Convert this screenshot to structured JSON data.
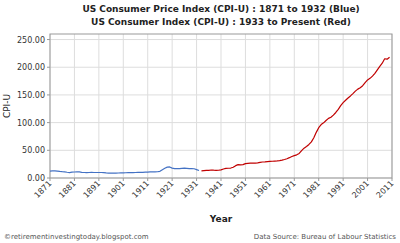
{
  "chart_data": {
    "type": "line",
    "title": "US Consumer Price Index (CPI-U) : 1871 to 1932 (Blue)",
    "subtitle": "US Consumer Index (CPI-U) : 1933 to Present (Red)",
    "x_label": "Year",
    "y_label": "CPI-U",
    "annotations": [
      "©retirementinvestingtoday.blogspot.com",
      "Data Source: Bureau of Labour Statistics"
    ],
    "xlim": [
      1871,
      2011
    ],
    "xticks": [
      1871,
      1881,
      1891,
      1901,
      1911,
      1921,
      1931,
      1941,
      1951,
      1961,
      1971,
      1981,
      1991,
      2001,
      2011
    ],
    "ylim": [
      0,
      260
    ],
    "yticks": [
      {
        "value": 0.0,
        "label": "0.00"
      },
      {
        "value": 50.0,
        "label": "50.00"
      },
      {
        "value": 100.0,
        "label": "100.00"
      },
      {
        "value": 150.0,
        "label": "150.00"
      },
      {
        "value": 200.0,
        "label": "200.00"
      },
      {
        "value": 250.0,
        "label": "250.00"
      }
    ],
    "grid": true,
    "series": [
      {
        "color": "#4472C4",
        "x": [
          1871,
          1872,
          1873,
          1874,
          1875,
          1876,
          1877,
          1878,
          1879,
          1880,
          1881,
          1882,
          1883,
          1884,
          1885,
          1886,
          1887,
          1888,
          1889,
          1890,
          1891,
          1892,
          1893,
          1894,
          1895,
          1896,
          1897,
          1898,
          1899,
          1900,
          1901,
          1902,
          1903,
          1904,
          1905,
          1906,
          1907,
          1908,
          1909,
          1910,
          1911,
          1912,
          1913,
          1914,
          1915,
          1916,
          1917,
          1918,
          1919,
          1920,
          1921,
          1922,
          1923,
          1924,
          1925,
          1926,
          1927,
          1928,
          1929,
          1930,
          1931,
          1932
        ],
        "values": [
          12.3,
          12.7,
          12.9,
          12.4,
          11.8,
          11.4,
          11.2,
          10.4,
          9.8,
          10.5,
          10.8,
          11.2,
          10.9,
          10.3,
          9.9,
          9.7,
          9.9,
          10.0,
          9.9,
          9.9,
          9.9,
          9.9,
          9.7,
          9.2,
          8.9,
          8.8,
          8.8,
          8.8,
          9.0,
          9.1,
          9.2,
          9.5,
          9.7,
          9.8,
          9.7,
          9.9,
          10.3,
          10.1,
          10.1,
          10.5,
          10.6,
          10.9,
          11.0,
          11.1,
          11.3,
          12.1,
          15.0,
          17.5,
          19.7,
          20.0,
          17.9,
          16.8,
          17.1,
          17.1,
          17.5,
          17.7,
          17.4,
          17.1,
          17.1,
          16.7,
          15.2,
          13.6
        ]
      },
      {
        "color": "#C00000",
        "x": [
          1933,
          1934,
          1935,
          1936,
          1937,
          1938,
          1939,
          1940,
          1941,
          1942,
          1943,
          1944,
          1945,
          1946,
          1947,
          1948,
          1949,
          1950,
          1951,
          1952,
          1953,
          1954,
          1955,
          1956,
          1957,
          1958,
          1959,
          1960,
          1961,
          1962,
          1963,
          1964,
          1965,
          1966,
          1967,
          1968,
          1969,
          1970,
          1971,
          1972,
          1973,
          1974,
          1975,
          1976,
          1977,
          1978,
          1979,
          1980,
          1981,
          1982,
          1983,
          1984,
          1985,
          1986,
          1987,
          1988,
          1989,
          1990,
          1991,
          1992,
          1993,
          1994,
          1995,
          1996,
          1997,
          1998,
          1999,
          2000,
          2001,
          2002,
          2003,
          2004,
          2005,
          2006,
          2007,
          2008,
          2009,
          2010
        ],
        "values": [
          12.9,
          13.4,
          13.7,
          13.9,
          14.4,
          14.1,
          13.9,
          14.0,
          14.7,
          16.3,
          17.3,
          17.6,
          18.0,
          19.5,
          22.3,
          24.1,
          23.8,
          24.1,
          26.0,
          26.5,
          26.7,
          26.9,
          26.8,
          27.2,
          28.1,
          28.9,
          29.1,
          29.6,
          29.9,
          30.2,
          30.6,
          31.0,
          31.5,
          32.4,
          33.4,
          34.8,
          36.7,
          38.8,
          40.5,
          41.8,
          44.4,
          49.3,
          53.8,
          56.9,
          60.6,
          65.2,
          72.6,
          82.4,
          90.9,
          96.5,
          99.6,
          103.9,
          107.6,
          109.6,
          113.6,
          118.3,
          124.0,
          130.7,
          136.2,
          140.3,
          144.5,
          148.2,
          152.4,
          156.9,
          160.5,
          163.0,
          166.6,
          172.2,
          177.1,
          179.9,
          184.0,
          188.9,
          195.3,
          201.6,
          207.3,
          215.3,
          214.5,
          218.1
        ]
      }
    ]
  }
}
